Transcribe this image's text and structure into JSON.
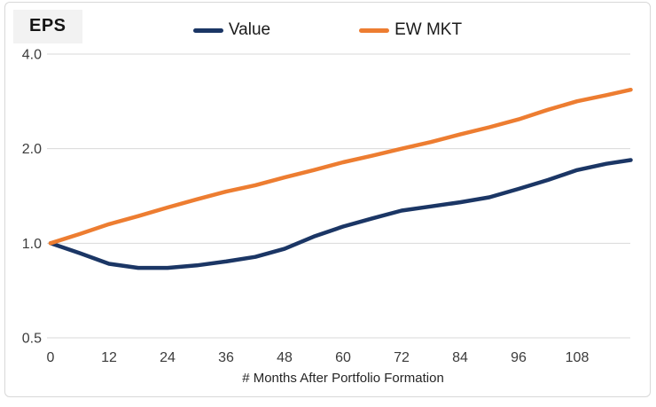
{
  "panel": {
    "corner_label": "EPS"
  },
  "chart_data": {
    "type": "line",
    "title": "EPS",
    "xlabel": "# Months After Portfolio Formation",
    "ylabel": "",
    "y_scale": "log2",
    "grid": "horizontal-only",
    "legend_position": "top-center",
    "y_ticks": [
      4.0,
      2.0,
      1.0,
      0.5
    ],
    "y_tick_labels": [
      "4.0",
      "2.0",
      "1.0",
      "0.5"
    ],
    "x_ticks": [
      0,
      12,
      24,
      36,
      48,
      60,
      72,
      84,
      96,
      108
    ],
    "xlim": [
      0,
      119
    ],
    "ylim": [
      0.5,
      4.0
    ],
    "x": [
      0,
      6,
      12,
      18,
      24,
      30,
      36,
      42,
      48,
      54,
      60,
      66,
      72,
      78,
      84,
      90,
      96,
      102,
      108,
      114,
      119
    ],
    "series": [
      {
        "name": "Value",
        "color": "#1b3665",
        "values": [
          1.0,
          0.93,
          0.86,
          0.835,
          0.835,
          0.85,
          0.875,
          0.905,
          0.96,
          1.05,
          1.13,
          1.2,
          1.27,
          1.31,
          1.35,
          1.4,
          1.49,
          1.59,
          1.71,
          1.79,
          1.84
        ]
      },
      {
        "name": "EW MKT",
        "color": "#ed7d31",
        "values": [
          1.0,
          1.07,
          1.15,
          1.22,
          1.3,
          1.38,
          1.46,
          1.53,
          1.62,
          1.71,
          1.81,
          1.9,
          2.0,
          2.1,
          2.22,
          2.34,
          2.48,
          2.66,
          2.83,
          2.96,
          3.08
        ]
      }
    ]
  },
  "colors": {
    "gridline": "#d9d9d9",
    "tick_text": "#3b3b3b",
    "axis_title_text": "#262626",
    "frame_border": "#d8d8d8",
    "corner_badge_bg": "#f2f2f2",
    "value_line": "#1b3665",
    "ew_mkt_line": "#ed7d31"
  }
}
